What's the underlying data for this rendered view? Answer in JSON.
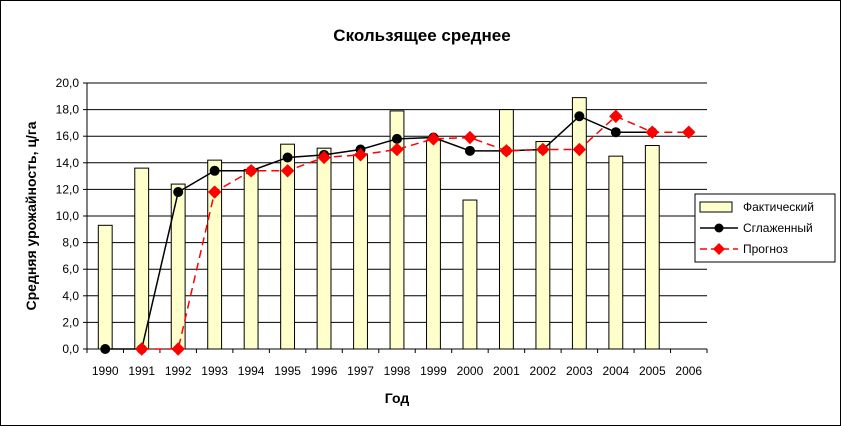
{
  "chart_data": {
    "type": "bar",
    "title": "Скользящее среднее",
    "xlabel": "Год",
    "ylabel": "Средняя урожайность, ц/га",
    "ylim": [
      0,
      20
    ],
    "ytick_step": 2,
    "ytick_labels": [
      "0,0",
      "2,0",
      "4,0",
      "6,0",
      "8,0",
      "10,0",
      "12,0",
      "14,0",
      "16,0",
      "18,0",
      "20,0"
    ],
    "categories": [
      "1990",
      "1991",
      "1992",
      "1993",
      "1994",
      "1995",
      "1996",
      "1997",
      "1998",
      "1999",
      "2000",
      "2001",
      "2002",
      "2003",
      "2004",
      "2005",
      "2006"
    ],
    "grid": "horizontal",
    "legend_position": "right",
    "series": [
      {
        "name": "Фактический",
        "kind": "bar",
        "color": "#FFFFCC",
        "values": [
          9.3,
          13.6,
          12.4,
          14.2,
          13.5,
          15.4,
          15.1,
          14.6,
          17.9,
          15.7,
          11.2,
          18.0,
          15.6,
          18.9,
          14.5,
          15.3,
          null
        ]
      },
      {
        "name": "Сглаженный",
        "kind": "line",
        "color": "#000000",
        "marker": "circle",
        "values": [
          0.0,
          0.0,
          11.8,
          13.4,
          13.4,
          14.4,
          14.6,
          15.0,
          15.8,
          15.9,
          14.9,
          14.9,
          15.0,
          17.5,
          16.3,
          16.3,
          null
        ]
      },
      {
        "name": "Прогноз",
        "kind": "line",
        "color": "#FF0000",
        "marker": "diamond",
        "dash": true,
        "values": [
          null,
          0.0,
          0.0,
          11.8,
          13.4,
          13.4,
          14.4,
          14.6,
          15.0,
          15.8,
          15.9,
          14.9,
          15.0,
          15.0,
          17.5,
          16.3,
          16.3
        ]
      }
    ]
  }
}
